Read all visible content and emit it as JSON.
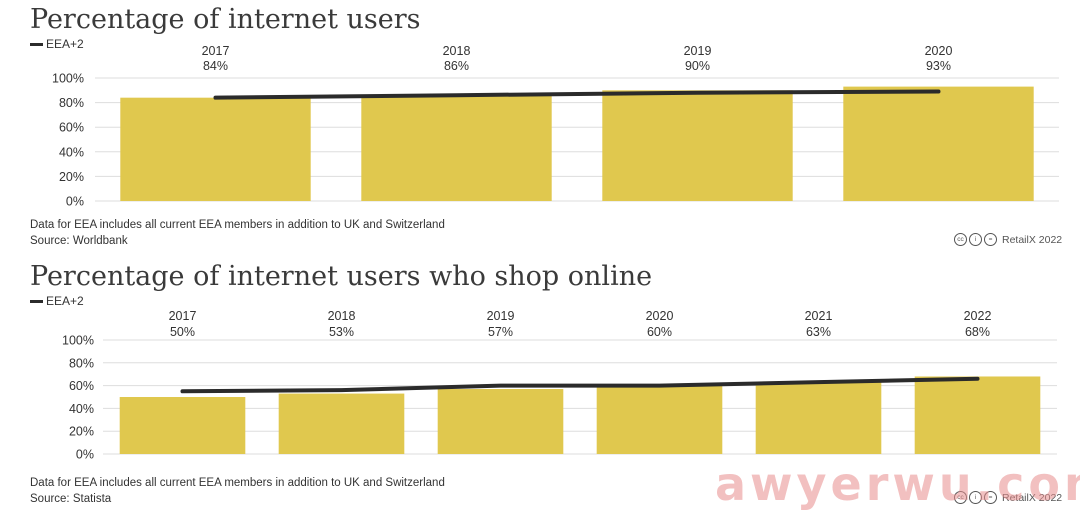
{
  "charts": [
    {
      "title": "Percentage of internet users",
      "legend": "EEA+2",
      "note": "Data for EEA includes all current EEA members in addition to UK and Switzerland",
      "source": "Source: Worldbank",
      "brand": "RetailX 2022"
    },
    {
      "title": "Percentage of internet users who shop online",
      "legend": "EEA+2",
      "note": "Data for EEA includes all current EEA members in addition to UK and Switzerland",
      "source": "Source: Statista",
      "brand": "RetailX 2022"
    }
  ],
  "watermark": "awyerwu.com",
  "colors": {
    "bar": "#e0c84e",
    "line": "#2b2b2b",
    "grid": "#dddddd"
  },
  "chart_data": [
    {
      "type": "bar",
      "title": "Percentage of internet users",
      "categories": [
        "2017",
        "2018",
        "2019",
        "2020"
      ],
      "values": [
        84,
        86,
        90,
        93
      ],
      "labels": [
        "84%",
        "86%",
        "90%",
        "93%"
      ],
      "series": [
        {
          "name": "EEA+2",
          "type": "line",
          "values": [
            84,
            86,
            88,
            89
          ]
        }
      ],
      "yticks": [
        "100%",
        "80%",
        "60%",
        "40%",
        "20%",
        "0%"
      ],
      "ylim": [
        0,
        100
      ],
      "grid": true,
      "legend": "top-left"
    },
    {
      "type": "bar",
      "title": "Percentage of internet users who shop online",
      "categories": [
        "2017",
        "2018",
        "2019",
        "2020",
        "2021",
        "2022"
      ],
      "values": [
        50,
        53,
        57,
        60,
        63,
        68
      ],
      "labels": [
        "50%",
        "53%",
        "57%",
        "60%",
        "63%",
        "68%"
      ],
      "series": [
        {
          "name": "EEA+2",
          "type": "line",
          "values": [
            55,
            56,
            60,
            60,
            63,
            66
          ]
        }
      ],
      "yticks": [
        "100%",
        "80%",
        "60%",
        "40%",
        "20%",
        "0%"
      ],
      "ylim": [
        0,
        100
      ],
      "grid": true,
      "legend": "top-left"
    }
  ]
}
